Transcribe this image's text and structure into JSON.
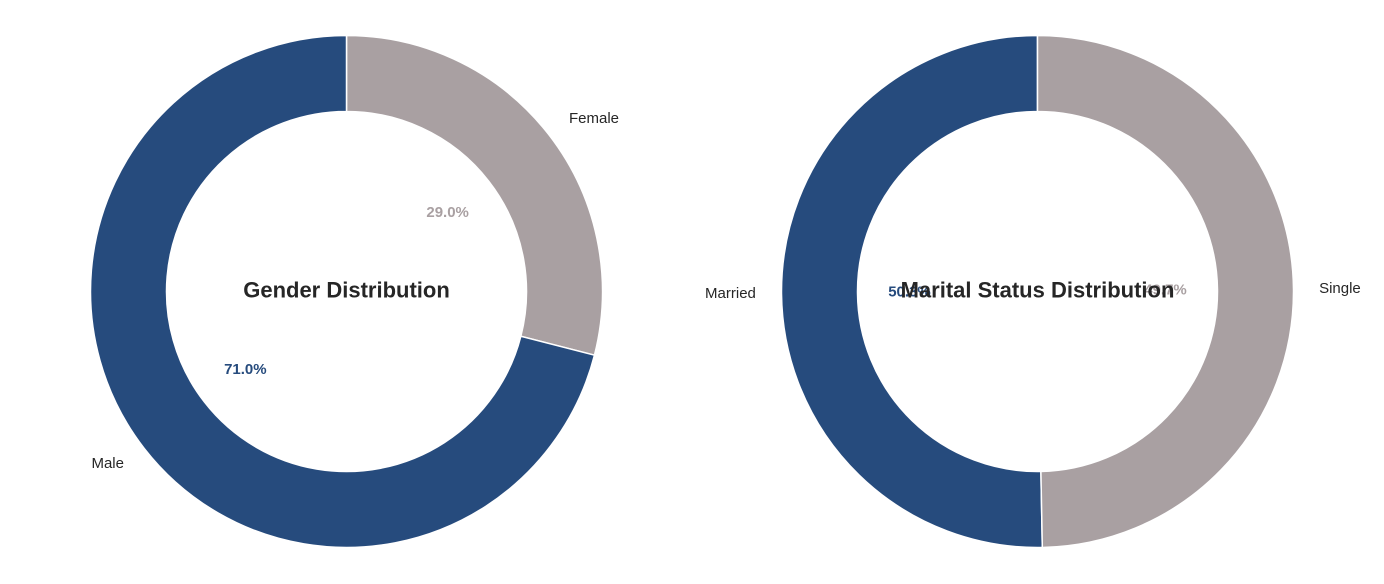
{
  "chart_data": [
    {
      "type": "pie",
      "style": "donut",
      "title": "Gender Distribution",
      "start": "top",
      "direction": "clockwise",
      "slices": [
        {
          "label": "Female",
          "value": 29.0,
          "pct_label": "29.0%",
          "color": "#a9a0a2"
        },
        {
          "label": "Male",
          "value": 71.0,
          "pct_label": "71.0%",
          "color": "#264b7d"
        }
      ]
    },
    {
      "type": "pie",
      "style": "donut",
      "title": "Marital Status Distribution",
      "start": "top",
      "direction": "counterclockwise",
      "slices": [
        {
          "label": "Married",
          "value": 50.3,
          "pct_label": "50.3%",
          "color": "#264b7d"
        },
        {
          "label": "Single",
          "value": 49.7,
          "pct_label": "49.7%",
          "color": "#a9a0a2"
        }
      ]
    }
  ]
}
